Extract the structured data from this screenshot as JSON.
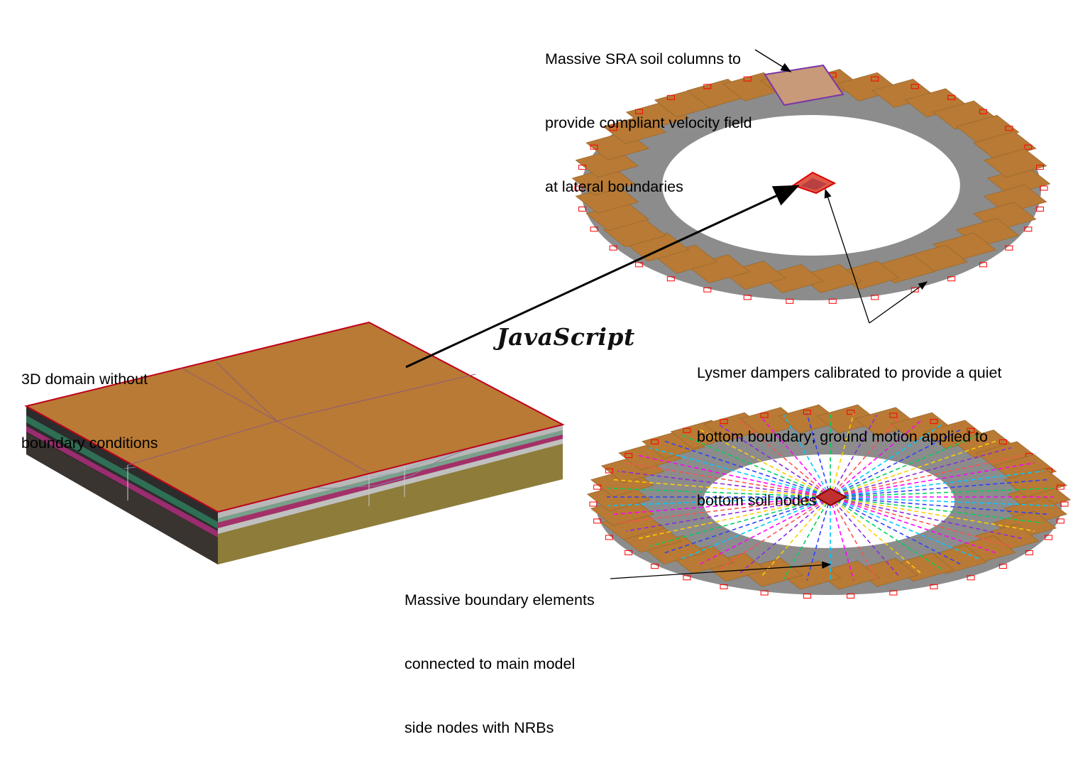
{
  "annotations": {
    "domain_3d": [
      "3D domain without",
      "boundary conditions"
    ],
    "sra_columns": [
      "Massive SRA soil columns to",
      "provide compliant velocity field",
      "at lateral boundaries"
    ],
    "lysmer": [
      "Lysmer dampers calibrated to provide a quiet",
      "bottom boundary; ground motion applied to",
      "bottom soil nodes"
    ],
    "boundary_elements": [
      "Massive boundary elements",
      "connected to main model",
      "side nodes with NRBs"
    ]
  },
  "center_word": "JavaScript",
  "colors": {
    "soil_top": "#b87a35",
    "soil_deep": "#8a7a35",
    "layer_magenta": "#9b2c6f",
    "layer_green": "#2f6f55",
    "edge_red": "#c0001a",
    "column_gray": "#8c8c8c",
    "damper_red": "#ff0000",
    "highlight_purple": "#7a35a8"
  }
}
